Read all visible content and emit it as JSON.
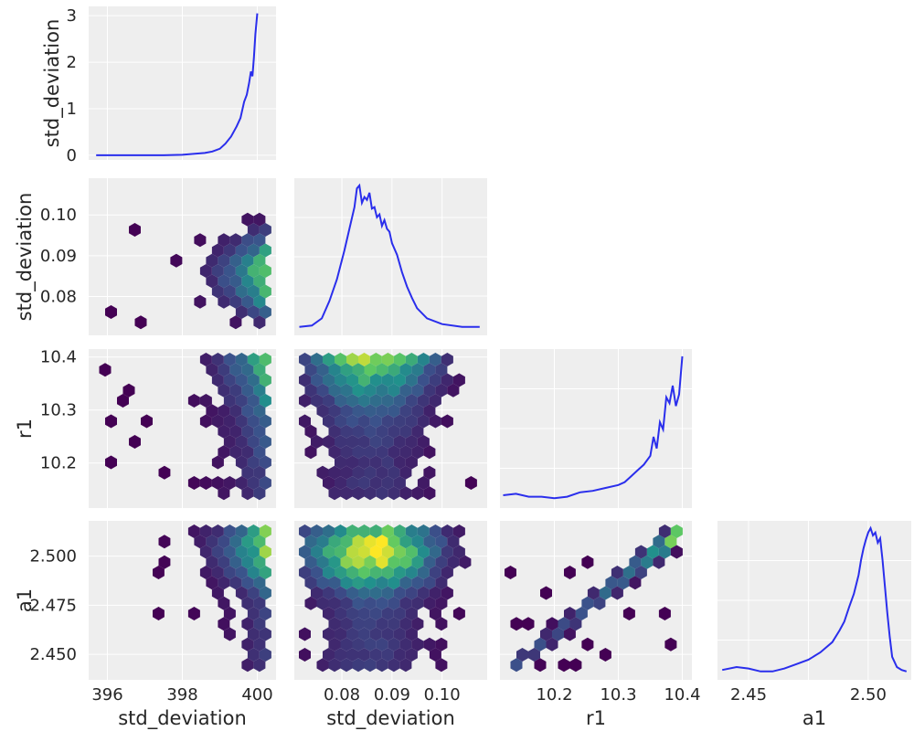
{
  "chart_data": {
    "type": "pair-plot",
    "subtype": "kde diagonal, hexbin off-diagonal",
    "variables": [
      "std_deviation",
      "std_deviation",
      "r1",
      "a1"
    ],
    "grid": true,
    "colors": {
      "background": "#eeeeee",
      "grid": "#ffffff",
      "kde_line": "#2a2eec",
      "hexbin_colormap": [
        "#440154",
        "#3b528b",
        "#21918c",
        "#5ec962",
        "#fde725"
      ]
    },
    "axis_labels": {
      "x": [
        "std_deviation",
        "std_deviation",
        "r1",
        "a1"
      ],
      "y": [
        "std_deviation",
        "std_deviation",
        "r1",
        "a1"
      ]
    },
    "ranges": [
      [
        395.5,
        400.5
      ],
      [
        0.0705,
        0.109
      ],
      [
        10.115,
        10.415
      ],
      [
        2.437,
        2.518
      ]
    ],
    "ticks": [
      {
        "values": [
          396,
          398,
          400
        ],
        "labels": [
          "396",
          "398",
          "400"
        ]
      },
      {
        "values": [
          0.08,
          0.09,
          0.1
        ],
        "labels": [
          "0.08",
          "0.09",
          "0.10"
        ]
      },
      {
        "values": [
          10.2,
          10.3,
          10.4
        ],
        "labels": [
          "10.2",
          "10.3",
          "10.4"
        ]
      },
      {
        "values": [
          2.45,
          2.475,
          2.5
        ],
        "labels": [
          "2.450",
          "2.475",
          "2.500"
        ]
      }
    ],
    "x_tick_labels_diag4": [
      "2.45",
      "2.50"
    ],
    "kde_first": {
      "ylim": [
        -0.1,
        3.2
      ],
      "yticks": [
        0,
        1,
        2,
        3
      ],
      "ytick_labels": [
        "0",
        "1",
        "2",
        "3"
      ],
      "x": [
        395.7,
        396.5,
        397.5,
        398.0,
        398.3,
        398.6,
        398.8,
        399.0,
        399.15,
        399.3,
        399.45,
        399.55,
        399.65,
        399.72,
        399.78,
        399.83,
        399.87,
        399.91,
        399.95,
        400.0
      ],
      "y": [
        0.0,
        0.0,
        0.0,
        0.01,
        0.03,
        0.05,
        0.08,
        0.14,
        0.25,
        0.4,
        0.62,
        0.8,
        1.15,
        1.3,
        1.55,
        1.8,
        1.7,
        2.1,
        2.6,
        3.05
      ]
    },
    "kde_diag": [
      {
        "x": [
          0.0715,
          0.074,
          0.076,
          0.0775,
          0.079,
          0.0805,
          0.0815,
          0.0825,
          0.083,
          0.0835,
          0.084,
          0.0845,
          0.085,
          0.0855,
          0.086,
          0.0865,
          0.087,
          0.0875,
          0.088,
          0.0885,
          0.089,
          0.0895,
          0.09,
          0.091,
          0.092,
          0.093,
          0.094,
          0.095,
          0.097,
          0.1,
          0.104,
          0.1075
        ],
        "y": [
          0.02,
          0.03,
          0.08,
          0.2,
          0.35,
          0.55,
          0.7,
          0.85,
          0.98,
          1.0,
          0.88,
          0.92,
          0.9,
          0.95,
          0.84,
          0.85,
          0.78,
          0.8,
          0.72,
          0.76,
          0.7,
          0.68,
          0.6,
          0.52,
          0.4,
          0.3,
          0.22,
          0.15,
          0.08,
          0.04,
          0.02,
          0.02
        ]
      },
      {
        "x": [
          10.12,
          10.14,
          10.16,
          10.18,
          10.2,
          10.22,
          10.24,
          10.26,
          10.28,
          10.3,
          10.31,
          10.32,
          10.33,
          10.34,
          10.35,
          10.355,
          10.36,
          10.365,
          10.37,
          10.375,
          10.38,
          10.385,
          10.39,
          10.395,
          10.4
        ],
        "y": [
          0.05,
          0.06,
          0.04,
          0.04,
          0.03,
          0.04,
          0.07,
          0.08,
          0.1,
          0.12,
          0.14,
          0.18,
          0.22,
          0.26,
          0.32,
          0.45,
          0.37,
          0.55,
          0.5,
          0.72,
          0.68,
          0.8,
          0.66,
          0.74,
          1.0
        ]
      },
      {
        "x": [
          2.439,
          2.445,
          2.45,
          2.455,
          2.46,
          2.465,
          2.47,
          2.475,
          2.48,
          2.485,
          2.488,
          2.49,
          2.492,
          2.494,
          2.496,
          2.497,
          2.498,
          2.499,
          2.5,
          2.501,
          2.502,
          2.503,
          2.504,
          2.505,
          2.506,
          2.507,
          2.508,
          2.509,
          2.51,
          2.512,
          2.514,
          2.516
        ],
        "y": [
          0.03,
          0.05,
          0.04,
          0.02,
          0.02,
          0.04,
          0.07,
          0.1,
          0.15,
          0.22,
          0.3,
          0.36,
          0.46,
          0.55,
          0.68,
          0.78,
          0.86,
          0.92,
          0.97,
          1.0,
          0.95,
          0.97,
          0.9,
          0.93,
          0.78,
          0.6,
          0.42,
          0.26,
          0.12,
          0.05,
          0.03,
          0.02
        ]
      }
    ],
    "hexbin_panels": [
      {
        "row": 1,
        "col": 0,
        "xvar": "std_deviation",
        "yvar": "std_deviation"
      },
      {
        "row": 2,
        "col": 0,
        "xvar": "std_deviation",
        "yvar": "r1"
      },
      {
        "row": 2,
        "col": 1,
        "xvar": "std_deviation",
        "yvar": "r1"
      },
      {
        "row": 3,
        "col": 0,
        "xvar": "std_deviation",
        "yvar": "a1"
      },
      {
        "row": 3,
        "col": 1,
        "xvar": "std_deviation",
        "yvar": "a1"
      },
      {
        "row": 3,
        "col": 2,
        "xvar": "r1",
        "yvar": "a1"
      }
    ]
  }
}
